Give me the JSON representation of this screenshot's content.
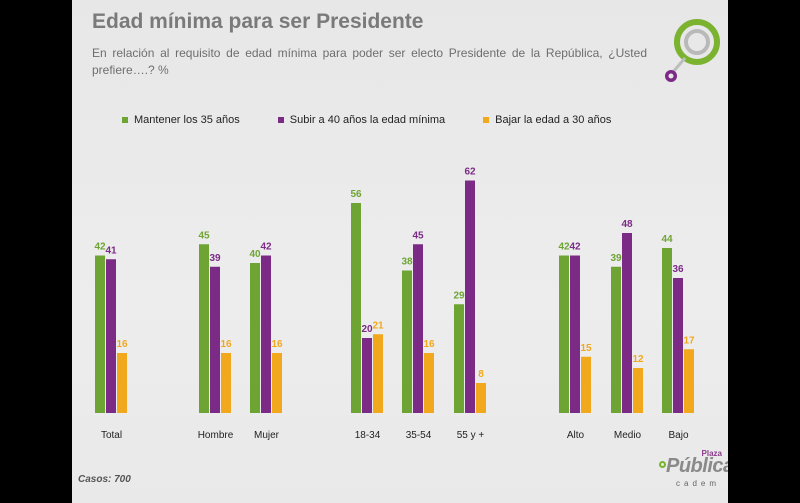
{
  "title": "Edad mínima para ser Presidente",
  "subtitle": "En relación al requisito de edad mínima para poder ser electo Presidente de la República, ¿Usted prefiere….? %",
  "footer_note": "Casos: 700",
  "brand": {
    "plaza": "Plaza",
    "publica": "Pública",
    "cadem": "cadem"
  },
  "colors": {
    "green": "#6ea433",
    "purple": "#7b2a86",
    "orange": "#f2a81d"
  },
  "chart_data": {
    "type": "bar",
    "categories": [
      "Total",
      "Hombre",
      "Mujer",
      "18-34",
      "35-54",
      "55 y +",
      "Alto",
      "Medio",
      "Bajo"
    ],
    "series": [
      {
        "name": "Mantener los 35 años",
        "values": [
          42,
          45,
          40,
          56,
          38,
          29,
          42,
          39,
          44
        ]
      },
      {
        "name": "Subir a 40 años la edad mínima",
        "values": [
          41,
          39,
          42,
          20,
          45,
          62,
          42,
          48,
          36
        ]
      },
      {
        "name": "Bajar la edad a 30 años",
        "values": [
          16,
          16,
          16,
          21,
          16,
          8,
          15,
          12,
          17
        ]
      }
    ],
    "ylim": [
      0,
      65
    ],
    "grid": false,
    "legend_position": "top"
  }
}
